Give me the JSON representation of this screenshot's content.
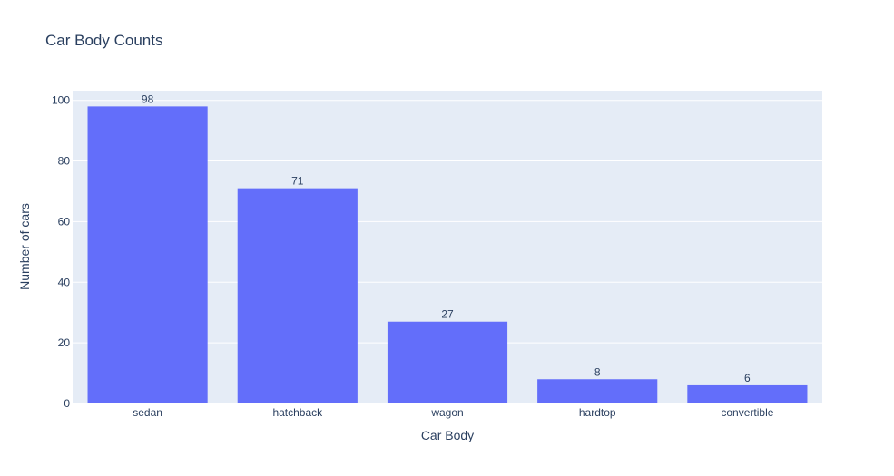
{
  "chart_data": {
    "type": "bar",
    "title": "Car Body Counts",
    "xlabel": "Car Body",
    "ylabel": "Number of cars",
    "categories": [
      "sedan",
      "hatchback",
      "wagon",
      "hardtop",
      "convertible"
    ],
    "values": [
      98,
      71,
      27,
      8,
      6
    ],
    "ylim": [
      0,
      103.2
    ],
    "yticks": [
      0,
      20,
      40,
      60,
      80,
      100
    ],
    "grid": true,
    "legend": "none",
    "colors": {
      "bar": "#636efa",
      "plot_bg": "#e5ecf6",
      "grid": "#ffffff",
      "text": "#2a3f5f"
    }
  }
}
